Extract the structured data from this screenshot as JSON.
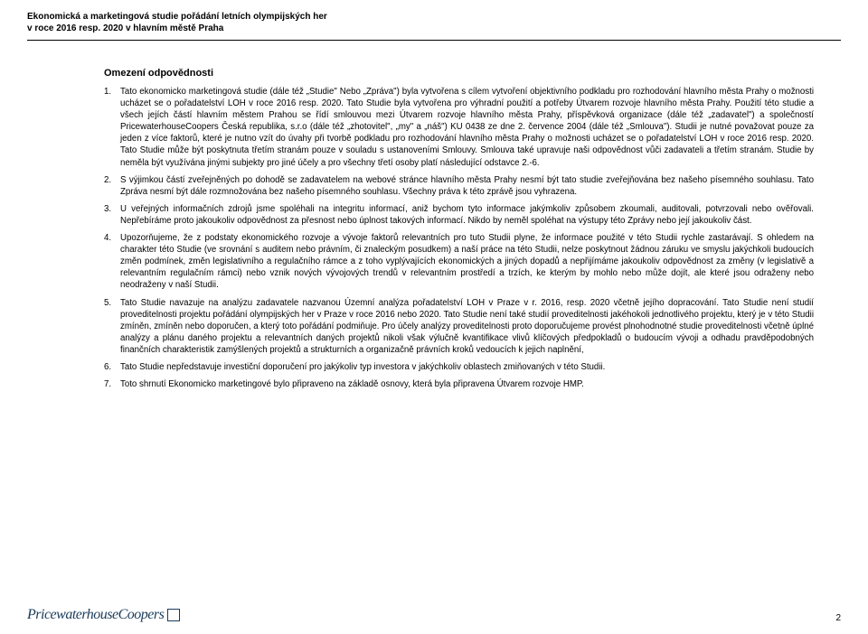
{
  "header": {
    "line1": "Ekonomická a marketingová studie pořádání letních olympijských her",
    "line2": "v roce 2016 resp. 2020 v hlavním městě Praha"
  },
  "section_heading": "Omezení odpovědnosti",
  "items": [
    "Tato ekonomicko marketingová studie (dále též „Studie\" Nebo „Zpráva\") byla vytvořena s cílem vytvoření objektivního podkladu pro rozhodování hlavního města Prahy o možnosti ucházet se o pořadatelství LOH v roce 2016 resp. 2020. Tato Studie byla vytvořena pro výhradní použití a potřeby Útvarem rozvoje hlavního města Prahy. Použití této studie a všech jejích částí hlavním městem Prahou se řídí smlouvou mezi Útvarem rozvoje hlavního města Prahy, příspěvková organizace (dále též „zadavatel\") a společností PricewaterhouseCoopers Česká republika, s.r.o (dále též „zhotovitel\", „my\" a „náš\") KU 0438 ze dne 2. července 2004 (dále též „Smlouva\"). Studii je nutné považovat pouze za jeden z více faktorů, které je nutno vzít do úvahy při tvorbě podkladu pro rozhodování hlavního města Prahy o možnosti ucházet se o pořadatelství LOH v roce 2016 resp. 2020. Tato Studie může být poskytnuta třetím stranám pouze v souladu s ustanoveními Smlouvy. Smlouva také upravuje naši odpovědnost vůči zadavateli a třetím stranám. Studie by neměla být využívána jinými subjekty pro jiné účely a pro všechny třetí osoby platí následující odstavce 2.-6.",
    "S výjimkou částí zveřejněných po dohodě se zadavatelem na webové stránce hlavního města Prahy nesmí být tato studie zveřejňována bez našeho písemného souhlasu. Tato Zpráva nesmí být dále rozmnožována bez našeho písemného souhlasu. Všechny práva k této zprávě jsou vyhrazena.",
    "U veřejných informačních zdrojů jsme spoléhali na integritu informací, aniž bychom tyto informace jakýmkoliv způsobem zkoumali, auditovali, potvrzovali nebo ověřovali. Nepřebíráme proto jakoukoliv odpovědnost za přesnost nebo úplnost takových informací. Nikdo by neměl spoléhat na výstupy této Zprávy nebo její jakoukoliv část.",
    "Upozorňujeme, že z podstaty ekonomického rozvoje a vývoje faktorů relevantních pro tuto Studii plyne, že informace použité v této Studii rychle zastarávají. S ohledem na charakter této Studie (ve srovnání s auditem nebo právním, či znaleckým posudkem) a naší práce na této Studii, nelze poskytnout žádnou záruku ve smyslu jakýchkoli budoucích změn podmínek, změn legislativního a regulačního rámce a z toho vyplývajících ekonomických a jiných dopadů a nepřijímáme jakoukoliv odpovědnost za změny (v legislativě a relevantním regulačním rámci) nebo vznik nových vývojových trendů v relevantním prostředí a trzích, ke kterým by mohlo nebo může dojít, ale které jsou odraženy nebo neodraženy v naší Studii.",
    "Tato Studie navazuje na analýzu zadavatele nazvanou Územní analýza pořadatelství LOH v Praze v r. 2016, resp. 2020 včetně jejího dopracování. Tato Studie není studií proveditelnosti projektu pořádání olympijských her v Praze v roce 2016 nebo 2020. Tato Studie není také studií proveditelnosti jakéhokoli jednotlivého projektu, který je v této Studii zmíněn, zmíněn nebo doporučen, a který toto pořádání podmiňuje. Pro účely analýzy proveditelnosti proto doporučujeme provést plnohodnotné studie proveditelnosti včetně úplné analýzy a plánu daného projektu a relevantních daných projektů nikoli však výlučně kvantifikace vlivů klíčových předpokladů o budoucím vývoji a odhadu pravděpodobných finančních charakteristik zamýšlených projektů a strukturních a organizačně právních kroků vedoucích k jejich naplnění,",
    "Tato Studie nepředstavuje investiční doporučení pro jakýkoliv typ investora v jakýchkoliv oblastech zmiňovaných v této Studii.",
    "Toto shrnutí Ekonomicko marketingové bylo připraveno na základě osnovy, která byla připravena Útvarem rozvoje HMP."
  ],
  "footer": {
    "logo_text": "PricewaterhouseCoopers",
    "page_number": "2"
  }
}
